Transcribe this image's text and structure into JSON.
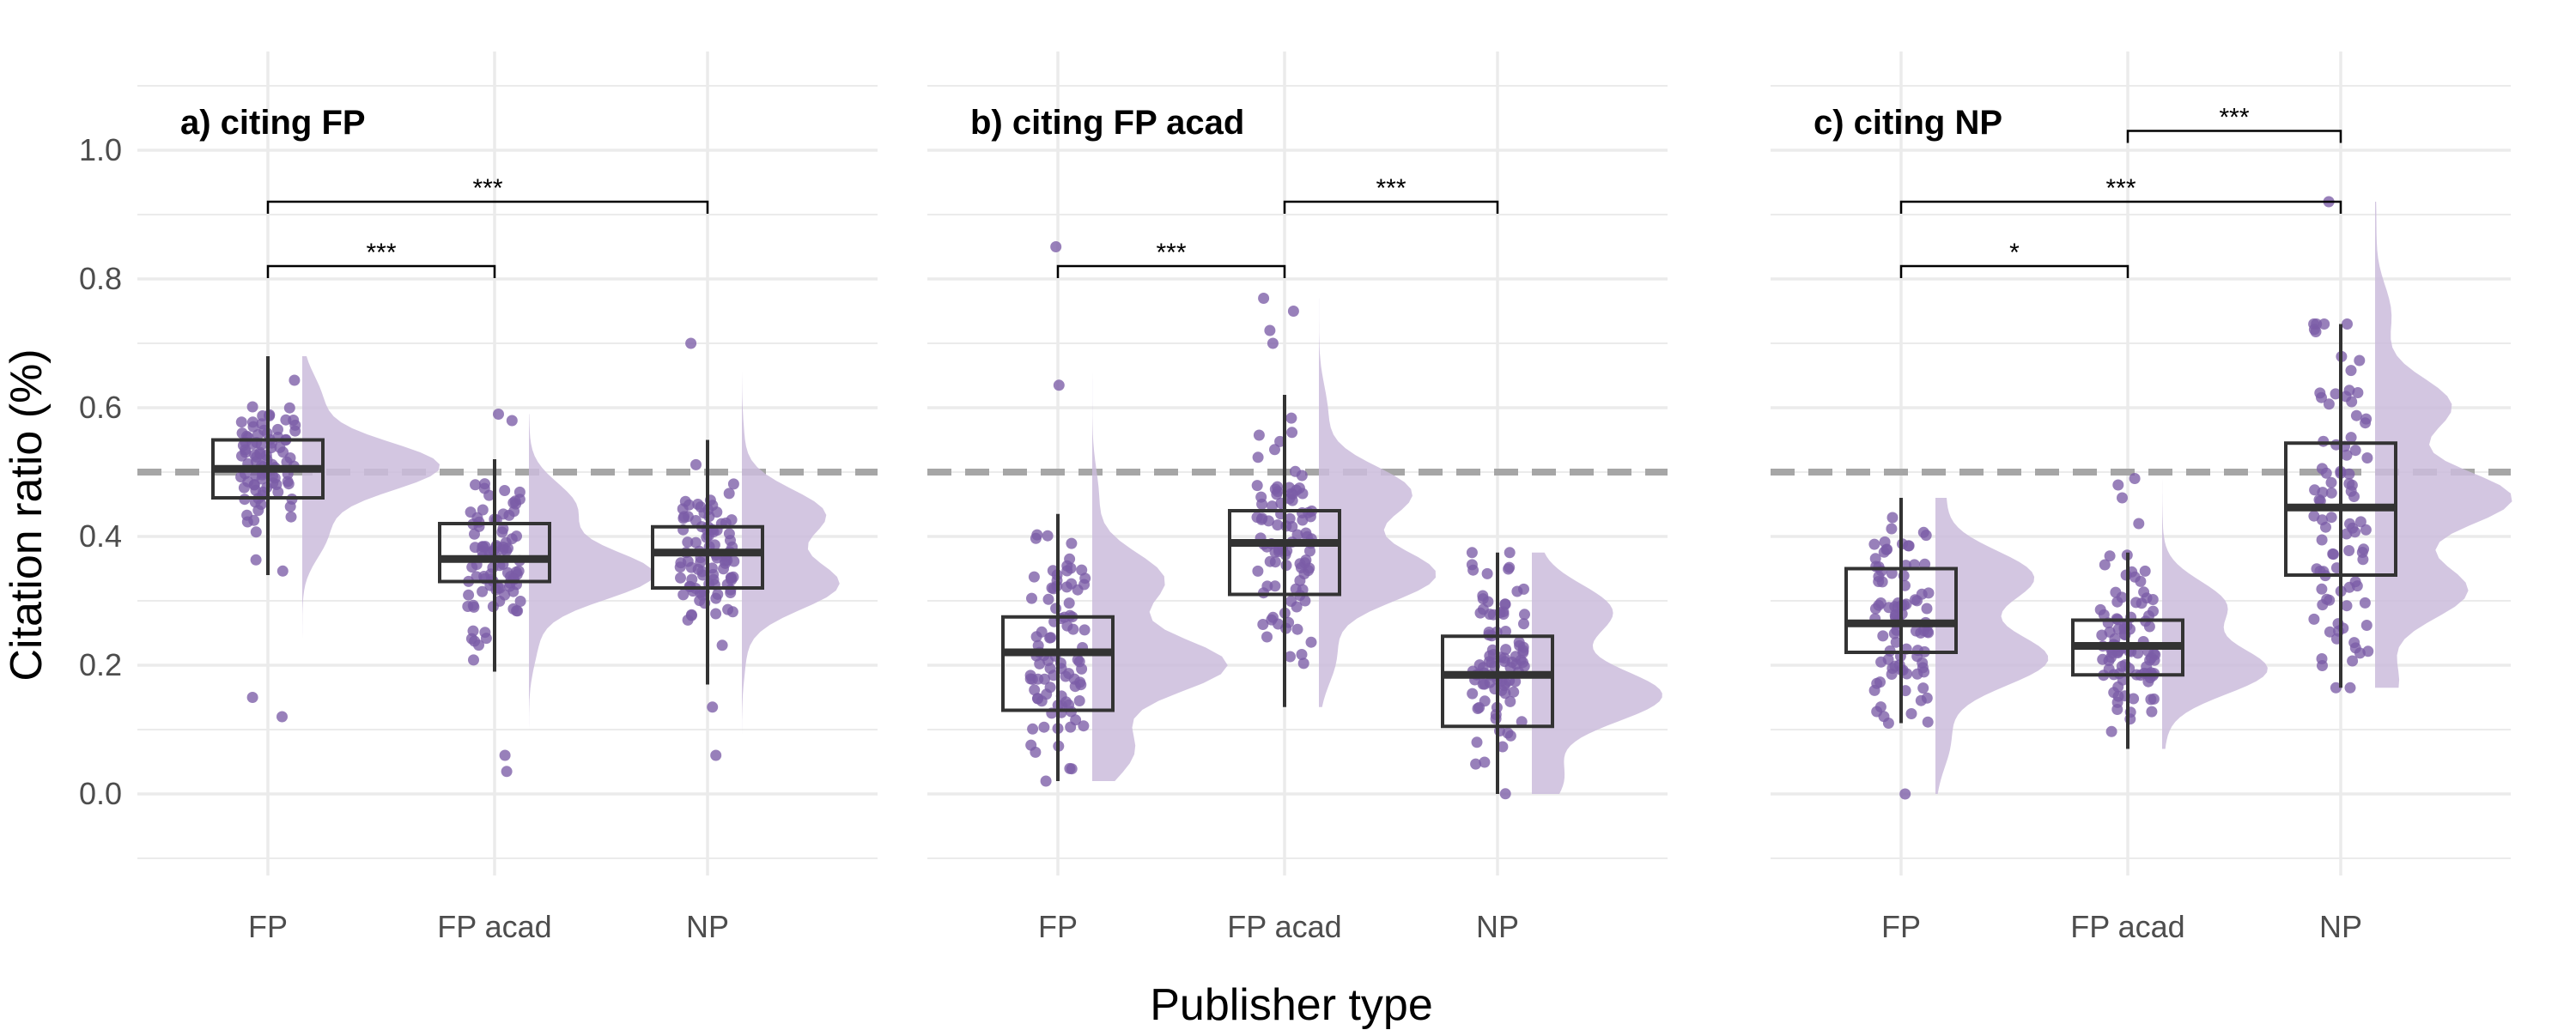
{
  "chart_data": {
    "type": "box",
    "xlabel": "Publisher type",
    "ylabel": "Citation ratio (%)",
    "ylim": [
      -0.1,
      1.1
    ],
    "yticks": [
      "0.0",
      "0.2",
      "0.4",
      "0.6",
      "0.8",
      "1.0"
    ],
    "categories": [
      "FP",
      "FP acad",
      "NP"
    ],
    "reference_line": 0.5,
    "colors": {
      "points": "#7b5ca6",
      "density": "#cbbcdc",
      "box": "#333333",
      "reference": "#a6a6a6",
      "grid": "#ebebeb"
    },
    "panels": [
      {
        "title": "a) citing FP",
        "boxes": [
          {
            "category": "FP",
            "min": 0.34,
            "q1": 0.46,
            "median": 0.505,
            "q3": 0.55,
            "max": 0.68,
            "outliers": [
              0.15,
              0.12
            ]
          },
          {
            "category": "FP acad",
            "min": 0.19,
            "q1": 0.33,
            "median": 0.365,
            "q3": 0.42,
            "max": 0.52,
            "outliers": [
              0.59,
              0.58,
              0.06,
              0.035
            ]
          },
          {
            "category": "NP",
            "min": 0.17,
            "q1": 0.32,
            "median": 0.375,
            "q3": 0.415,
            "max": 0.55,
            "outliers": [
              0.7,
              0.135,
              0.06
            ]
          }
        ],
        "significance": [
          {
            "from": "FP",
            "to": "FP acad",
            "label": "***",
            "y": 0.82
          },
          {
            "from": "FP",
            "to": "NP",
            "label": "***",
            "y": 0.92
          }
        ]
      },
      {
        "title": "b) citing FP acad",
        "boxes": [
          {
            "category": "FP",
            "min": 0.02,
            "q1": 0.13,
            "median": 0.22,
            "q3": 0.275,
            "max": 0.435,
            "outliers": [
              0.85,
              0.635
            ]
          },
          {
            "category": "FP acad",
            "min": 0.135,
            "q1": 0.31,
            "median": 0.39,
            "q3": 0.44,
            "max": 0.62,
            "outliers": [
              0.77,
              0.75,
              0.72,
              0.7
            ]
          },
          {
            "category": "NP",
            "min": 0.0,
            "q1": 0.105,
            "median": 0.185,
            "q3": 0.245,
            "max": 0.375,
            "outliers": []
          }
        ],
        "significance": [
          {
            "from": "FP",
            "to": "FP acad",
            "label": "***",
            "y": 0.82
          },
          {
            "from": "FP acad",
            "to": "NP",
            "label": "***",
            "y": 0.92
          }
        ]
      },
      {
        "title": "c) citing NP",
        "boxes": [
          {
            "category": "FP",
            "min": 0.11,
            "q1": 0.22,
            "median": 0.265,
            "q3": 0.35,
            "max": 0.46,
            "outliers": [
              0.0
            ]
          },
          {
            "category": "FP acad",
            "min": 0.07,
            "q1": 0.185,
            "median": 0.23,
            "q3": 0.27,
            "max": 0.375,
            "outliers": [
              0.49,
              0.48,
              0.46,
              0.42
            ]
          },
          {
            "category": "NP",
            "min": 0.165,
            "q1": 0.34,
            "median": 0.445,
            "q3": 0.545,
            "max": 0.73,
            "outliers": [
              0.92
            ]
          }
        ],
        "significance": [
          {
            "from": "FP",
            "to": "FP acad",
            "label": "*",
            "y": 0.82
          },
          {
            "from": "FP",
            "to": "NP",
            "label": "***",
            "y": 0.92
          },
          {
            "from": "FP acad",
            "to": "NP",
            "label": "***",
            "y": 1.03
          }
        ]
      }
    ]
  }
}
